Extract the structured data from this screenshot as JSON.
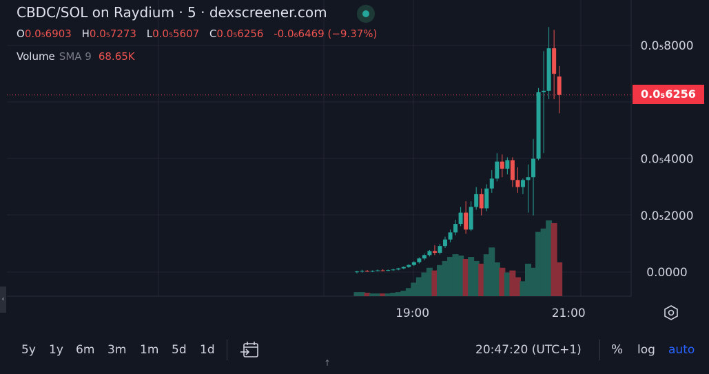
{
  "header": {
    "title": "CBDC/SOL on Raydium · 5 · dexscreener.com",
    "ohlc": [
      {
        "key": "O",
        "value": "0.0₅6903"
      },
      {
        "key": "H",
        "value": "0.0₅7273"
      },
      {
        "key": "L",
        "value": "0.0₅5607"
      },
      {
        "key": "C",
        "value": "0.0₅6256"
      }
    ],
    "change": "-0.0₆6469 (−9.37%)",
    "volume_label": "Volume",
    "sma_label": "SMA 9",
    "volume_value": "68.65K"
  },
  "chart_data": {
    "type": "candlestick",
    "title": "CBDC/SOL on Raydium · 5 · dexscreener.com",
    "y_unit_note": "prices in units of 1e-6 (axis prints 0.0₅N)",
    "ylim": [
      -0.5,
      9.0
    ],
    "yticks": [
      {
        "value": 8.0,
        "label": "0.0₅8000"
      },
      {
        "value": 4.0,
        "label": "0.0₅4000"
      },
      {
        "value": 2.0,
        "label": "0.0₅2000"
      },
      {
        "value": 0.0,
        "label": "0.0000"
      }
    ],
    "xticks": [
      {
        "label": "19:00",
        "index": 10.7
      },
      {
        "label": "21:00",
        "index": 40.8
      }
    ],
    "last_price": 6.256,
    "last_price_label": "0.0₅6256",
    "up_color": "#26a69a",
    "down_color": "#ef5350",
    "candles": [
      {
        "o": 0.0,
        "h": 0.05,
        "l": -0.05,
        "c": 0.02,
        "v": 6
      },
      {
        "o": 0.02,
        "h": 0.08,
        "l": -0.02,
        "c": 0.04,
        "v": 6
      },
      {
        "o": 0.04,
        "h": 0.07,
        "l": 0.01,
        "c": 0.03,
        "v": 5
      },
      {
        "o": 0.03,
        "h": 0.06,
        "l": 0.0,
        "c": 0.04,
        "v": 4
      },
      {
        "o": 0.04,
        "h": 0.09,
        "l": 0.02,
        "c": 0.06,
        "v": 4
      },
      {
        "o": 0.06,
        "h": 0.1,
        "l": 0.03,
        "c": 0.05,
        "v": 4
      },
      {
        "o": 0.05,
        "h": 0.09,
        "l": 0.03,
        "c": 0.07,
        "v": 4
      },
      {
        "o": 0.07,
        "h": 0.12,
        "l": 0.04,
        "c": 0.09,
        "v": 5
      },
      {
        "o": 0.09,
        "h": 0.15,
        "l": 0.06,
        "c": 0.13,
        "v": 6
      },
      {
        "o": 0.13,
        "h": 0.2,
        "l": 0.1,
        "c": 0.18,
        "v": 8
      },
      {
        "o": 0.18,
        "h": 0.28,
        "l": 0.15,
        "c": 0.25,
        "v": 12
      },
      {
        "o": 0.25,
        "h": 0.38,
        "l": 0.22,
        "c": 0.35,
        "v": 20
      },
      {
        "o": 0.35,
        "h": 0.52,
        "l": 0.3,
        "c": 0.48,
        "v": 28
      },
      {
        "o": 0.48,
        "h": 0.65,
        "l": 0.42,
        "c": 0.6,
        "v": 35
      },
      {
        "o": 0.6,
        "h": 0.78,
        "l": 0.55,
        "c": 0.74,
        "v": 42
      },
      {
        "o": 0.74,
        "h": 0.95,
        "l": 0.6,
        "c": 0.68,
        "v": 38
      },
      {
        "o": 0.68,
        "h": 1.0,
        "l": 0.62,
        "c": 0.92,
        "v": 46
      },
      {
        "o": 0.92,
        "h": 1.25,
        "l": 0.85,
        "c": 1.15,
        "v": 52
      },
      {
        "o": 1.15,
        "h": 1.5,
        "l": 1.05,
        "c": 1.4,
        "v": 58
      },
      {
        "o": 1.4,
        "h": 1.85,
        "l": 1.3,
        "c": 1.7,
        "v": 62
      },
      {
        "o": 1.7,
        "h": 2.3,
        "l": 1.62,
        "c": 2.1,
        "v": 60
      },
      {
        "o": 2.1,
        "h": 2.5,
        "l": 1.35,
        "c": 1.5,
        "v": 55
      },
      {
        "o": 1.5,
        "h": 2.5,
        "l": 1.45,
        "c": 2.3,
        "v": 58
      },
      {
        "o": 2.3,
        "h": 3.0,
        "l": 2.2,
        "c": 2.75,
        "v": 52
      },
      {
        "o": 2.75,
        "h": 2.95,
        "l": 2.0,
        "c": 2.25,
        "v": 48
      },
      {
        "o": 2.25,
        "h": 3.1,
        "l": 2.15,
        "c": 2.95,
        "v": 62
      },
      {
        "o": 2.95,
        "h": 3.6,
        "l": 2.8,
        "c": 3.3,
        "v": 72
      },
      {
        "o": 3.3,
        "h": 4.2,
        "l": 3.2,
        "c": 3.9,
        "v": 50
      },
      {
        "o": 3.9,
        "h": 4.15,
        "l": 3.35,
        "c": 3.65,
        "v": 42
      },
      {
        "o": 3.65,
        "h": 4.05,
        "l": 3.45,
        "c": 3.95,
        "v": 35
      },
      {
        "o": 3.95,
        "h": 4.05,
        "l": 3.0,
        "c": 3.25,
        "v": 38
      },
      {
        "o": 3.25,
        "h": 3.7,
        "l": 2.8,
        "c": 3.0,
        "v": 28
      },
      {
        "o": 3.0,
        "h": 3.3,
        "l": 2.75,
        "c": 3.25,
        "v": 22
      },
      {
        "o": 3.25,
        "h": 3.8,
        "l": 2.1,
        "c": 3.35,
        "v": 48
      },
      {
        "o": 3.35,
        "h": 4.7,
        "l": 2.0,
        "c": 4.0,
        "v": 42
      },
      {
        "o": 4.0,
        "h": 6.5,
        "l": 3.95,
        "c": 6.35,
        "v": 95
      },
      {
        "o": 6.35,
        "h": 7.8,
        "l": 4.2,
        "c": 6.4,
        "v": 100
      },
      {
        "o": 6.4,
        "h": 8.65,
        "l": 6.1,
        "c": 7.9,
        "v": 112
      },
      {
        "o": 7.9,
        "h": 8.55,
        "l": 6.1,
        "c": 7.0,
        "v": 108
      },
      {
        "o": 6.903,
        "h": 7.273,
        "l": 5.607,
        "c": 6.256,
        "v": 50
      }
    ]
  },
  "time_axis": {
    "labels": [
      "19:00",
      "21:00"
    ]
  },
  "bottom_bar": {
    "ranges": [
      "5y",
      "1y",
      "6m",
      "3m",
      "1m",
      "5d",
      "1d"
    ],
    "clock": "20:47:20 (UTC+1)",
    "percent_label": "%",
    "log_label": "log",
    "auto_label": "auto"
  },
  "icons": {
    "settings": "settings-hexagon-icon",
    "calendar": "calendar-goto-icon",
    "collapse": "chevron-left-icon"
  }
}
